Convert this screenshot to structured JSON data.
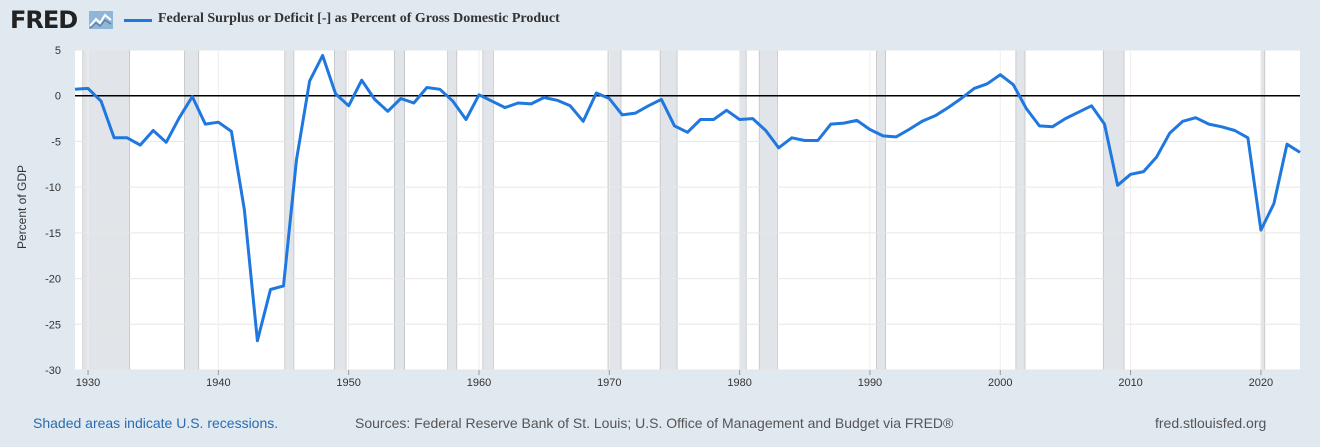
{
  "logo": {
    "text": "FRED"
  },
  "legend": {
    "label": "Federal Surplus or Deficit [-] as Percent of Gross Domestic Product",
    "color": "#1f77e0"
  },
  "footer": {
    "recessions_note": "Shaded areas indicate U.S. recessions.",
    "sources": "Sources: Federal Reserve Bank of St. Louis; U.S. Office of Management and Budget via FRED®",
    "site": "fred.stlouisfed.org"
  },
  "chart_data": {
    "type": "line",
    "title": "Federal Surplus or Deficit [-] as Percent of Gross Domestic Product",
    "xlabel": "",
    "ylabel": "Percent of GDP",
    "xlim": [
      1929,
      2023
    ],
    "ylim": [
      -30,
      5
    ],
    "y_ticks": [
      "5",
      "0",
      "-5",
      "-10",
      "-15",
      "-20",
      "-25",
      "-30"
    ],
    "y_tick_values": [
      5,
      0,
      -5,
      -10,
      -15,
      -20,
      -25,
      -30
    ],
    "x_ticks": [
      "1930",
      "1940",
      "1950",
      "1960",
      "1970",
      "1980",
      "1990",
      "2000",
      "2010",
      "2020"
    ],
    "x_tick_values": [
      1930,
      1940,
      1950,
      1960,
      1970,
      1980,
      1990,
      2000,
      2010,
      2020
    ],
    "grid": true,
    "zero_line": true,
    "recessions": [
      [
        1929.6,
        1933.2
      ],
      [
        1937.4,
        1938.5
      ],
      [
        1945.1,
        1945.8
      ],
      [
        1948.9,
        1949.8
      ],
      [
        1953.5,
        1954.3
      ],
      [
        1957.6,
        1958.3
      ],
      [
        1960.3,
        1961.1
      ],
      [
        1969.9,
        1970.9
      ],
      [
        1973.9,
        1975.2
      ],
      [
        1980.0,
        1980.5
      ],
      [
        1981.5,
        1982.9
      ],
      [
        1990.5,
        1991.2
      ],
      [
        2001.2,
        2001.9
      ],
      [
        2007.9,
        2009.5
      ],
      [
        2020.0,
        2020.3
      ]
    ],
    "series": [
      {
        "name": "Federal Surplus or Deficit [-] as Percent of Gross Domestic Product",
        "x": [
          1929,
          1930,
          1931,
          1932,
          1933,
          1934,
          1935,
          1936,
          1937,
          1938,
          1939,
          1940,
          1941,
          1942,
          1943,
          1944,
          1945,
          1946,
          1947,
          1948,
          1949,
          1950,
          1951,
          1952,
          1953,
          1954,
          1955,
          1956,
          1957,
          1958,
          1959,
          1960,
          1961,
          1962,
          1963,
          1964,
          1965,
          1966,
          1967,
          1968,
          1969,
          1970,
          1971,
          1972,
          1973,
          1974,
          1975,
          1976,
          1977,
          1978,
          1979,
          1980,
          1981,
          1982,
          1983,
          1984,
          1985,
          1986,
          1987,
          1988,
          1989,
          1990,
          1991,
          1992,
          1993,
          1994,
          1995,
          1996,
          1997,
          1998,
          1999,
          2000,
          2001,
          2002,
          2003,
          2004,
          2005,
          2006,
          2007,
          2008,
          2009,
          2010,
          2011,
          2012,
          2013,
          2014,
          2015,
          2016,
          2017,
          2018,
          2019,
          2020,
          2021,
          2022,
          2023
        ],
        "values": [
          0.7,
          0.8,
          -0.6,
          -4.6,
          -4.6,
          -5.4,
          -3.8,
          -5.1,
          -2.4,
          -0.1,
          -3.1,
          -2.9,
          -3.9,
          -12.5,
          -26.8,
          -21.2,
          -20.8,
          -7.0,
          1.6,
          4.4,
          0.2,
          -1.1,
          1.7,
          -0.4,
          -1.7,
          -0.3,
          -0.8,
          0.9,
          0.7,
          -0.6,
          -2.6,
          0.1,
          -0.6,
          -1.3,
          -0.8,
          -0.9,
          -0.2,
          -0.5,
          -1.1,
          -2.8,
          0.3,
          -0.3,
          -2.1,
          -1.9,
          -1.1,
          -0.4,
          -3.3,
          -4.0,
          -2.6,
          -2.6,
          -1.6,
          -2.6,
          -2.5,
          -3.8,
          -5.7,
          -4.6,
          -4.9,
          -4.9,
          -3.1,
          -3.0,
          -2.7,
          -3.7,
          -4.4,
          -4.5,
          -3.7,
          -2.8,
          -2.2,
          -1.3,
          -0.3,
          0.8,
          1.3,
          2.3,
          1.2,
          -1.4,
          -3.3,
          -3.4,
          -2.5,
          -1.8,
          -1.1,
          -3.1,
          -9.8,
          -8.6,
          -8.3,
          -6.7,
          -4.1,
          -2.8,
          -2.4,
          -3.1,
          -3.4,
          -3.8,
          -4.6,
          -14.7,
          -11.8,
          -5.3,
          -6.2
        ]
      }
    ]
  }
}
